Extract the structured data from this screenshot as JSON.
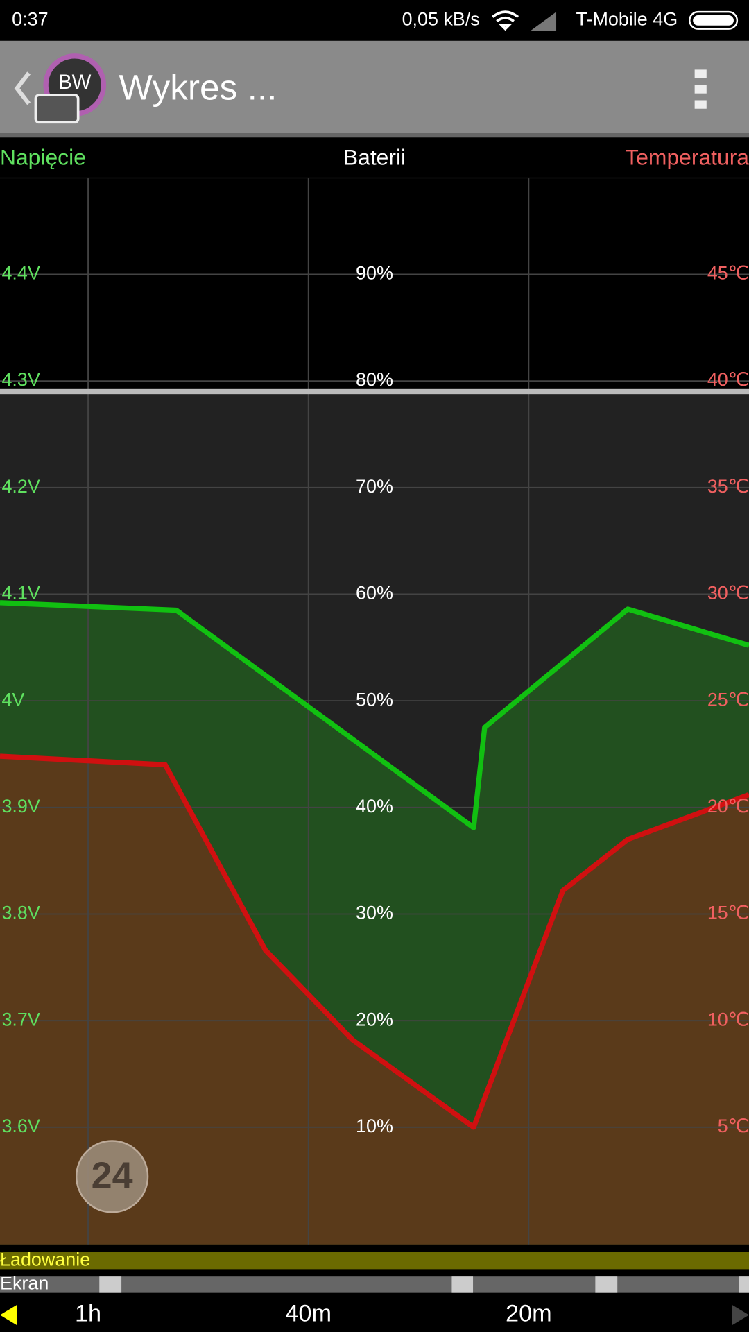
{
  "status_bar": {
    "time": "0:37",
    "speed": "0,05 kB/s",
    "carrier": "T-Mobile 4G"
  },
  "app_bar": {
    "icon_text": "BW",
    "title": "Wykres ..."
  },
  "chart_data": {
    "type": "line",
    "y3_label": "Baterii",
    "xlim": [
      68,
      0
    ],
    "xticks": [
      {
        "value": 60,
        "label": "1h"
      },
      {
        "value": 40,
        "label": "40m"
      },
      {
        "value": 20,
        "label": "20m"
      }
    ],
    "ylim": [
      3.49,
      4.49
    ],
    "yticks": [
      {
        "value": 3.6,
        "label": "3.6V"
      },
      {
        "value": 3.7,
        "label": "3.7V"
      },
      {
        "value": 3.8,
        "label": "3.8V"
      },
      {
        "value": 3.9,
        "label": "3.9V"
      },
      {
        "value": 4.0,
        "label": "4V"
      },
      {
        "value": 4.1,
        "label": "4.1V"
      },
      {
        "value": 4.2,
        "label": "4.2V"
      },
      {
        "value": 4.3,
        "label": "4.3V"
      },
      {
        "value": 4.4,
        "label": "4.4V"
      }
    ],
    "y2lim": [
      -0.5,
      49.5
    ],
    "y2ticks": [
      {
        "value": 5,
        "label": "5℃"
      },
      {
        "value": 10,
        "label": "10℃"
      },
      {
        "value": 15,
        "label": "15℃"
      },
      {
        "value": 20,
        "label": "20℃"
      },
      {
        "value": 25,
        "label": "25℃"
      },
      {
        "value": 30,
        "label": "30℃"
      },
      {
        "value": 35,
        "label": "35℃"
      },
      {
        "value": 40,
        "label": "40℃"
      },
      {
        "value": 45,
        "label": "45℃"
      }
    ],
    "y3lim": [
      -1,
      99
    ],
    "y3ticks": [
      {
        "value": 10,
        "label": "10%"
      },
      {
        "value": 20,
        "label": "20%"
      },
      {
        "value": 30,
        "label": "30%"
      },
      {
        "value": 40,
        "label": "40%"
      },
      {
        "value": 50,
        "label": "50%"
      },
      {
        "value": 60,
        "label": "60%"
      },
      {
        "value": 70,
        "label": "70%"
      },
      {
        "value": 80,
        "label": "80%"
      },
      {
        "value": 90,
        "label": "90%"
      }
    ],
    "grid": true,
    "series": [
      {
        "name": "Napięcie",
        "color": "#11c011",
        "fill": "#22501f",
        "x": [
          68,
          52,
          25,
          24,
          11,
          0
        ],
        "values": [
          4.092,
          4.085,
          3.881,
          3.975,
          4.086,
          4.052
        ]
      },
      {
        "name": "Temperatura",
        "color": "#d01010",
        "fill": "#5a3a1a",
        "axis": "y2",
        "x": [
          68,
          53,
          43.9,
          36,
          25,
          16.9,
          11,
          0
        ],
        "values": [
          22.4,
          22.0,
          13.3,
          9.1,
          5.0,
          16.1,
          18.5,
          20.6
        ]
      }
    ]
  },
  "badge": "24",
  "tracks": {
    "charging": "Ładowanie",
    "screen": "Ekran"
  }
}
